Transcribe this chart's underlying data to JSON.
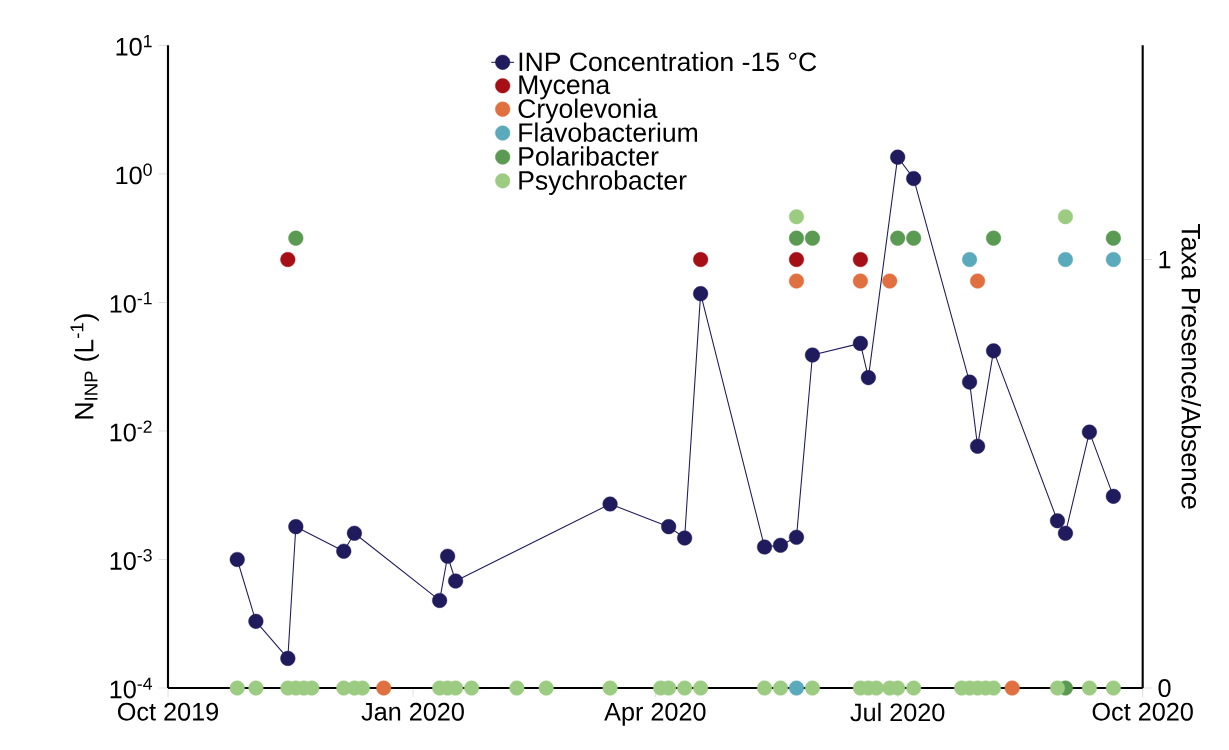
{
  "chart_data": {
    "type": "line",
    "xlabel": null,
    "ylabel": "N$_{INP}$ (L$^{-1}$)",
    "y2label": "Taxa Presence/Absence",
    "xlim": [
      "2019-10-01",
      "2020-10-01"
    ],
    "xticks": [
      {
        "value": "2019-10-01",
        "label": "Oct 2019"
      },
      {
        "value": "2020-01-01",
        "label": "Jan 2020"
      },
      {
        "value": "2020-04-01",
        "label": "Apr 2020"
      },
      {
        "value": "2020-07-01",
        "label": "Jul 2020"
      },
      {
        "value": "2020-10-01",
        "label": "Oct 2020"
      }
    ],
    "log": "y",
    "ylim": [
      0.0001,
      10
    ],
    "yticks": [
      {
        "value": 0.0001,
        "label": "10$^{-4}$"
      },
      {
        "value": 0.001,
        "label": "10$^{-3}$"
      },
      {
        "value": 0.01,
        "label": "10$^{-2}$"
      },
      {
        "value": 0.1,
        "label": "10$^{-1}$"
      },
      {
        "value": 1,
        "label": "10$^{0}$"
      },
      {
        "value": 10,
        "label": "10$^{1}$"
      }
    ],
    "y2lim": [
      0,
      1.5
    ],
    "y2ticks": [
      0,
      1
    ],
    "legend": "top",
    "marker": "circle",
    "line_style": "solid",
    "series": [
      {
        "name": "INP Concentration -15 °C",
        "axis": "y",
        "color": "#1f1b5c",
        "x": [
          "2019-10-27",
          "2019-11-03",
          "2019-11-15",
          "2019-11-18",
          "2019-12-06",
          "2019-12-10",
          "2020-01-11",
          "2020-01-14",
          "2020-01-17",
          "2020-03-15",
          "2020-04-06",
          "2020-04-12",
          "2020-04-18",
          "2020-05-12",
          "2020-05-18",
          "2020-05-24",
          "2020-05-30",
          "2020-06-17",
          "2020-06-20",
          "2020-07-01",
          "2020-07-07",
          "2020-07-28",
          "2020-07-31",
          "2020-08-06",
          "2020-08-30",
          "2020-09-02",
          "2020-09-11",
          "2020-09-20"
        ],
        "values": [
          0.001,
          0.00033,
          0.00017,
          0.0018,
          0.00116,
          0.0016,
          0.00048,
          0.00106,
          0.00068,
          0.0027,
          0.0018,
          0.00147,
          0.117,
          0.00125,
          0.00129,
          0.00149,
          0.039,
          0.048,
          0.026,
          1.35,
          0.92,
          0.024,
          0.0076,
          0.042,
          0.002,
          0.0016,
          0.0098,
          0.0031
        ]
      },
      {
        "name": "Mycena",
        "type": "scatter",
        "axis": "y2",
        "color": "#a50f15",
        "x": [
          "2019-11-15",
          "2020-04-18",
          "2020-05-24",
          "2020-06-17"
        ],
        "values": [
          1,
          1,
          1,
          1
        ]
      },
      {
        "name": "Cryolevonia",
        "type": "scatter",
        "axis": "y2",
        "color": "#e0703f",
        "x": [
          "2019-12-21",
          "2020-05-24",
          "2020-06-17",
          "2020-06-28",
          "2020-07-31",
          "2020-08-13"
        ],
        "values": [
          0,
          0.95,
          0.95,
          0.95,
          0.95,
          0
        ]
      },
      {
        "name": "Flavobacterium",
        "type": "scatter",
        "axis": "y2",
        "color": "#5aaabb",
        "x": [
          "2020-05-24",
          "2020-07-28",
          "2020-09-02",
          "2020-09-20"
        ],
        "values": [
          0,
          1,
          1,
          1
        ]
      },
      {
        "name": "Polaribacter",
        "type": "scatter",
        "axis": "y2",
        "color": "#5b9a52",
        "x": [
          "2019-11-18",
          "2020-05-24",
          "2020-05-30",
          "2020-07-01",
          "2020-07-07",
          "2020-08-06",
          "2020-09-02",
          "2020-09-20"
        ],
        "values": [
          1.05,
          1.05,
          1.05,
          1.05,
          1.05,
          1.05,
          0,
          1.05
        ]
      },
      {
        "name": "Psychrobacter",
        "type": "scatter",
        "axis": "y2",
        "color": "#9ccb82",
        "x": [
          "2019-10-27",
          "2019-11-03",
          "2019-11-15",
          "2019-11-18",
          "2019-11-21",
          "2019-11-24",
          "2019-12-06",
          "2019-12-10",
          "2019-12-13",
          "2020-01-11",
          "2020-01-14",
          "2020-01-17",
          "2020-01-23",
          "2020-02-09",
          "2020-02-20",
          "2020-03-15",
          "2020-04-03",
          "2020-04-06",
          "2020-04-12",
          "2020-04-18",
          "2020-05-12",
          "2020-05-18",
          "2020-05-24",
          "2020-05-30",
          "2020-06-17",
          "2020-06-20",
          "2020-06-23",
          "2020-06-28",
          "2020-07-01",
          "2020-07-07",
          "2020-07-25",
          "2020-07-28",
          "2020-07-31",
          "2020-08-03",
          "2020-08-06",
          "2020-08-30",
          "2020-09-02",
          "2020-09-11",
          "2020-09-20"
        ],
        "values": [
          0,
          0,
          0,
          0,
          0,
          0,
          0,
          0,
          0,
          0,
          0,
          0,
          0,
          0,
          0,
          0,
          0,
          0,
          0,
          0,
          0,
          0,
          1.1,
          0,
          0,
          0,
          0,
          0,
          0,
          0,
          0,
          0,
          0,
          0,
          0,
          0,
          1.1,
          0,
          0
        ]
      }
    ]
  }
}
